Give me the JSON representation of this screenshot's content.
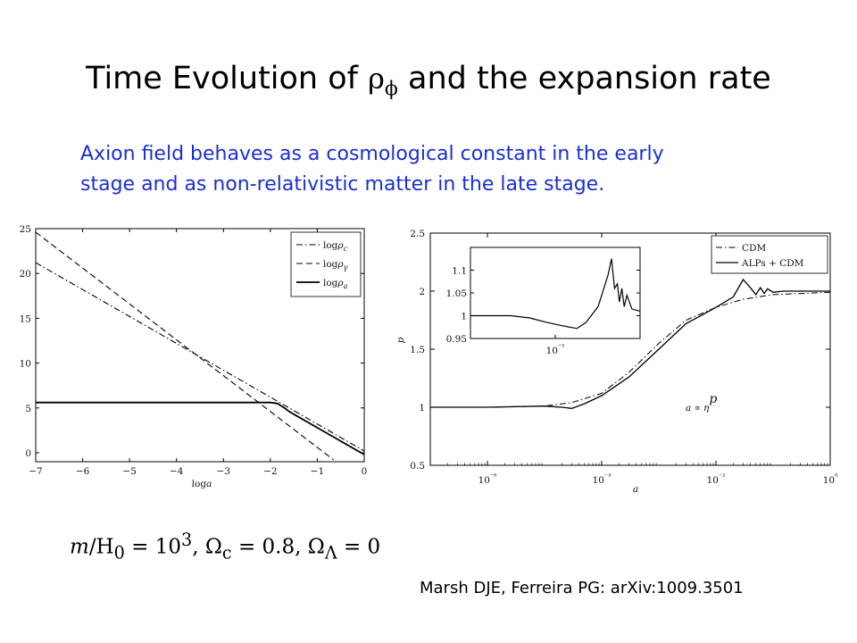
{
  "slide": {
    "title_prefix": "Time Evolution of ",
    "title_symbol": "ρ",
    "title_symbol_sub": "ϕ",
    "title_suffix": " and the expansion rate",
    "subtitle_line1": "Axion field behaves as a cosmological constant  in the early",
    "subtitle_line2": "stage and as  non-relativistic matter  in the late stage.",
    "formula": "m/H₀ = 10³,   Ω_c = 0.8,   Ω_Λ = 0",
    "formula_parts": {
      "m": "m",
      "H": "/H",
      "H_sub": "0",
      "eq1": " = 10",
      "exp": "3",
      "sep1": ",   Ω",
      "c_sub": "c",
      "eq2": " = 0.8,   Ω",
      "L_sub": "Λ",
      "eq3": " = 0"
    },
    "citation": "Marsh  DJE,  Ferreira PG: arXiv:1009.3501",
    "text_color": "#1a2fd2"
  },
  "chart_data": [
    {
      "type": "line",
      "xlabel": "log a",
      "ylabel": "",
      "xlim": [
        -7,
        0
      ],
      "ylim": [
        -1,
        25
      ],
      "x_ticks": [
        "−7",
        "−6",
        "−5",
        "−4",
        "−3",
        "−2",
        "−1",
        "0"
      ],
      "y_ticks": [
        "0",
        "5",
        "10",
        "15",
        "20",
        "25"
      ],
      "legend": "top-right",
      "series": [
        {
          "name": "log ρc",
          "style": "dash-dot",
          "x": [
            -7,
            -4.2,
            -3,
            -2,
            -1,
            0
          ],
          "y": [
            21.2,
            12.8,
            9.2,
            6.2,
            3.2,
            0.2
          ]
        },
        {
          "name": "log ργ",
          "style": "dashed",
          "x": [
            -7,
            -5,
            -4,
            -3,
            -2,
            -1,
            -0.65
          ],
          "y": [
            24.6,
            16.6,
            12.6,
            8.6,
            4.6,
            0.6,
            -0.8
          ]
        },
        {
          "name": "log ρa",
          "style": "solid",
          "x": [
            -7,
            -4,
            -2,
            -1.85,
            -1.7,
            -1.6,
            -1.5,
            -1,
            0
          ],
          "y": [
            5.6,
            5.6,
            5.6,
            5.5,
            5.0,
            4.6,
            4.3,
            2.8,
            -0.2
          ]
        }
      ]
    },
    {
      "type": "line",
      "xlabel": "a",
      "ylabel": "p",
      "x_scale": "log",
      "xlim": [
        1e-07,
        1
      ],
      "ylim": [
        0.5,
        2.5
      ],
      "x_ticks": [
        "10⁻⁶",
        "10⁻⁴",
        "10⁻²",
        "10⁰"
      ],
      "y_ticks": [
        "0.5",
        "1",
        "1.5",
        "2",
        "2.5"
      ],
      "legend": "top-right",
      "annotation": "a ∝ ηᵖ",
      "series": [
        {
          "name": "CDM",
          "style": "dash-dot",
          "x": [
            1e-07,
            1e-06,
            1e-05,
            3e-05,
            0.0001,
            0.0003,
            0.001,
            0.003,
            0.01,
            0.03,
            0.1,
            1
          ],
          "y": [
            1.0,
            1.0,
            1.01,
            1.04,
            1.12,
            1.3,
            1.55,
            1.75,
            1.86,
            1.93,
            1.97,
            1.99
          ]
        },
        {
          "name": "ALPs + CDM",
          "style": "solid",
          "x": [
            1e-07,
            1e-06,
            1e-05,
            2e-05,
            3e-05,
            5e-05,
            0.0001,
            0.0003,
            0.001,
            0.003,
            0.01,
            0.02,
            0.03,
            0.04,
            0.05,
            0.06,
            0.07,
            0.08,
            0.1,
            0.15,
            0.2,
            1
          ],
          "y": [
            1.0,
            1.0,
            1.01,
            1.0,
            0.99,
            1.03,
            1.1,
            1.26,
            1.5,
            1.72,
            1.86,
            1.95,
            2.1,
            2.03,
            1.97,
            2.03,
            1.98,
            2.02,
            1.99,
            2.0,
            2.0,
            2.0
          ]
        }
      ]
    },
    {
      "type": "line",
      "inset": true,
      "x_scale": "log",
      "xlim": [
        1e-06,
        0.0001
      ],
      "ylim": [
        0.95,
        1.15
      ],
      "x_ticks": [
        "10⁻⁵"
      ],
      "y_ticks": [
        "0.95",
        "1",
        "1.05",
        "1.1"
      ],
      "series": [
        {
          "name": "ALPs + CDM",
          "style": "solid",
          "x": [
            1e-06,
            3e-06,
            5e-06,
            8e-06,
            1.2e-05,
            1.8e-05,
            2.3e-05,
            3.2e-05,
            4.2e-05,
            4.6e-05,
            5e-05,
            5.4e-05,
            5.7e-05,
            6.1e-05,
            6.5e-05,
            7e-05,
            8e-05,
            0.0001
          ],
          "y": [
            1.0,
            1.0,
            0.995,
            0.985,
            0.978,
            0.972,
            0.985,
            1.02,
            1.09,
            1.125,
            1.06,
            1.07,
            1.03,
            1.06,
            1.02,
            1.045,
            1.015,
            1.01
          ]
        }
      ]
    }
  ]
}
